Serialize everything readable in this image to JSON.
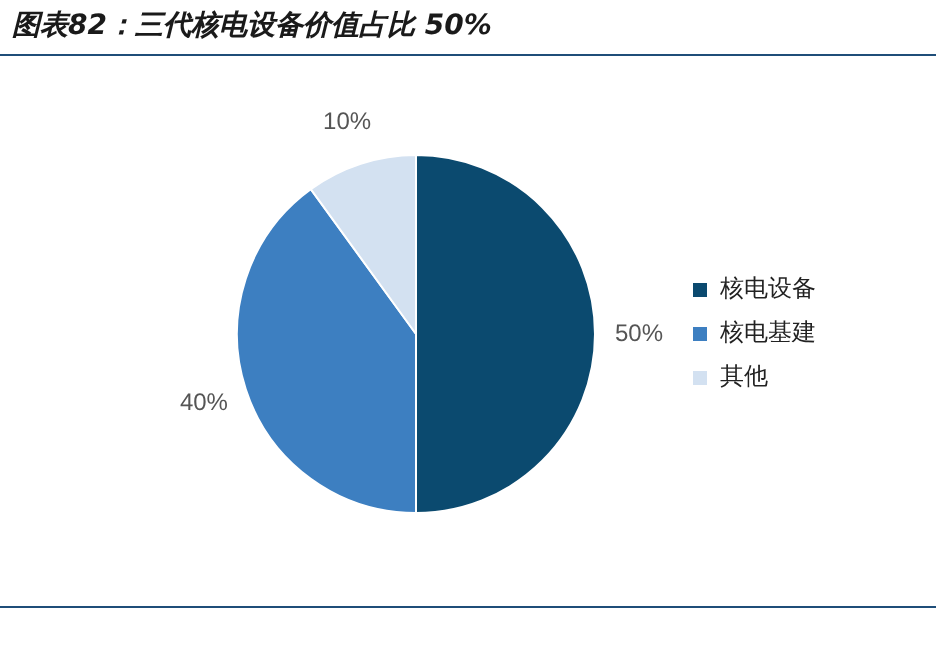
{
  "chart_data": {
    "type": "pie",
    "title": "图表82：三代核电设备价值占比 50%",
    "categories": [
      "核电设备",
      "核电基建",
      "其他"
    ],
    "values": [
      50,
      40,
      10
    ],
    "colors": [
      "#0b4a6f",
      "#3d7fc1",
      "#d3e1f1"
    ],
    "value_labels": [
      "50%",
      "40%",
      "10%"
    ],
    "legend": "right"
  }
}
